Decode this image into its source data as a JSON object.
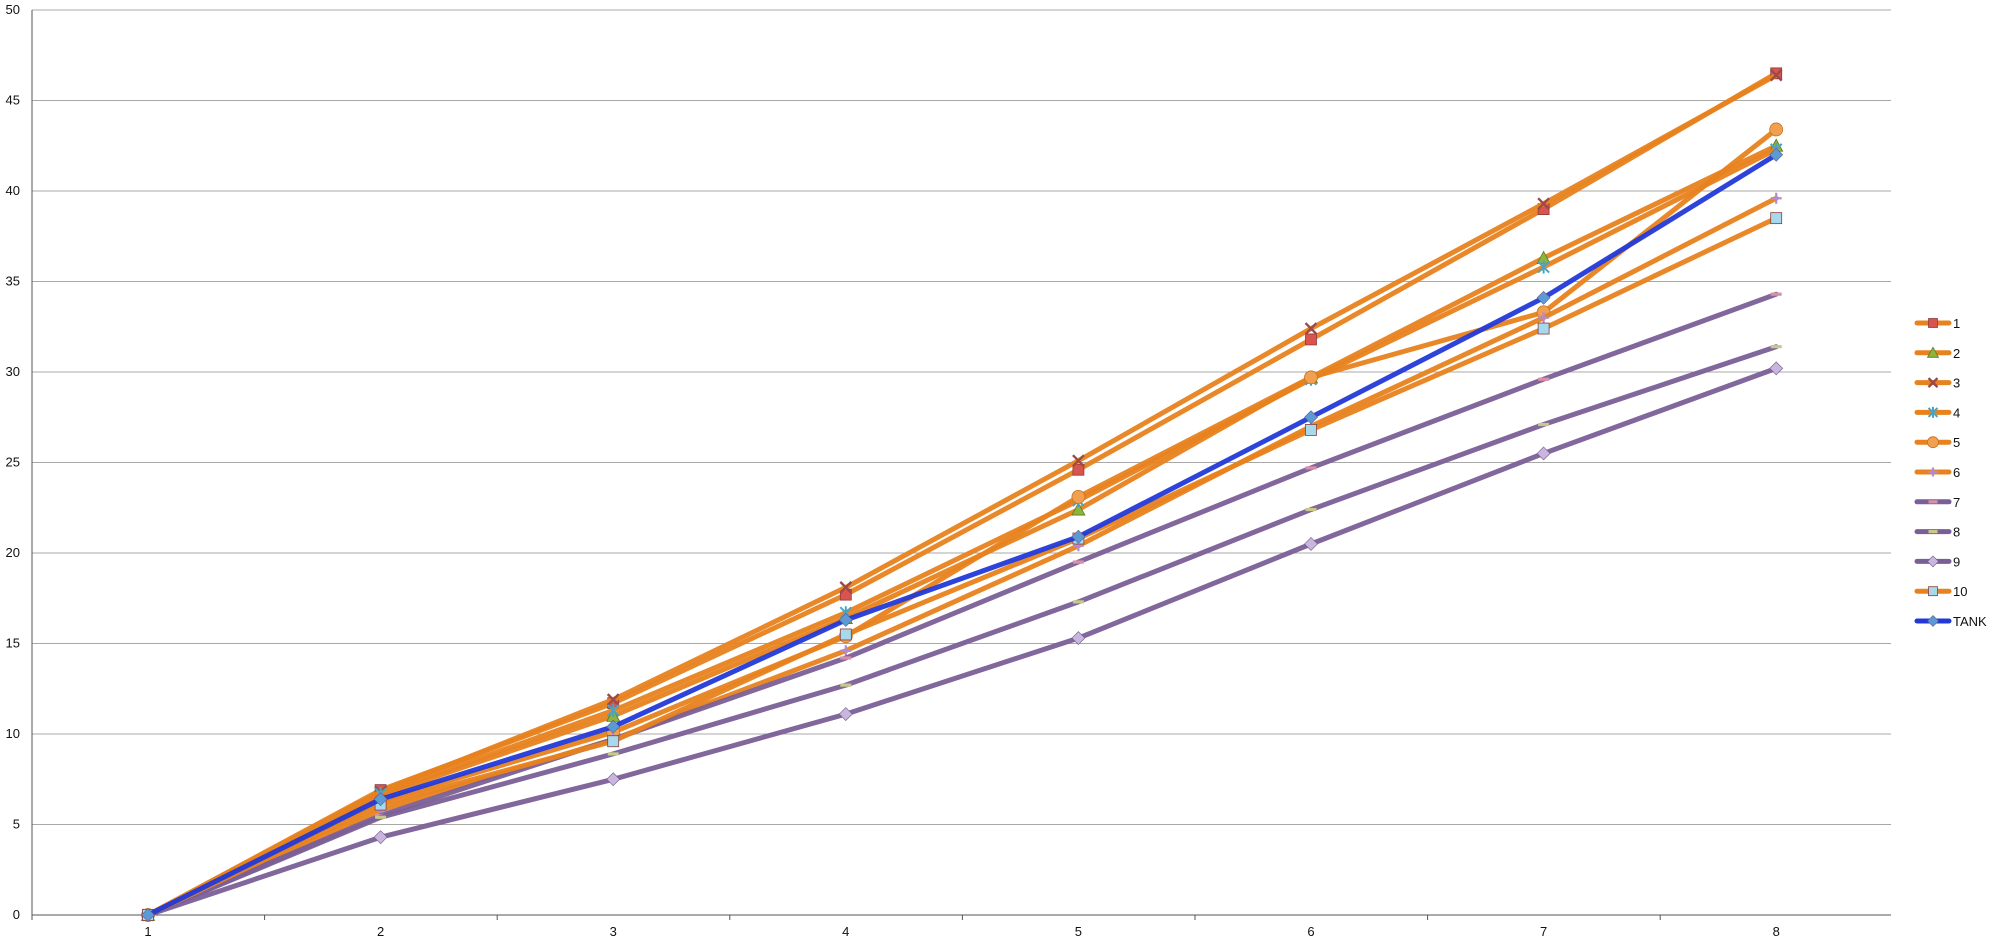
{
  "chart_data": {
    "type": "line",
    "title": "",
    "xlabel": "",
    "ylabel": "",
    "x": [
      1,
      2,
      3,
      4,
      5,
      6,
      7,
      8
    ],
    "x_tick_labels": [
      "1",
      "2",
      "3",
      "4",
      "5",
      "6",
      "7",
      "8"
    ],
    "ylim": [
      0,
      50
    ],
    "y_tick_labels": [
      "0",
      "5",
      "10",
      "15",
      "20",
      "25",
      "30",
      "35",
      "40",
      "45",
      "50"
    ],
    "grid": true,
    "legend_position": "right",
    "series": [
      {
        "name": "1",
        "color": "#E8821E",
        "marker": "square",
        "marker_color": "#D9534F",
        "values": [
          0,
          6.9,
          11.7,
          17.7,
          24.6,
          31.8,
          39.0,
          46.5
        ]
      },
      {
        "name": "2",
        "color": "#E8821E",
        "marker": "triangle",
        "marker_color": "#8DB43C",
        "values": [
          0,
          6.6,
          11.0,
          16.4,
          22.4,
          29.7,
          36.3,
          42.5
        ]
      },
      {
        "name": "3",
        "color": "#E8821E",
        "marker": "x",
        "marker_color": "#9B4A4A",
        "values": [
          0,
          6.8,
          11.9,
          18.1,
          25.1,
          32.4,
          39.3,
          46.4
        ]
      },
      {
        "name": "4",
        "color": "#E8821E",
        "marker": "star",
        "marker_color": "#4BA3C3",
        "values": [
          0,
          6.7,
          11.3,
          16.7,
          22.9,
          29.6,
          35.8,
          42.3
        ]
      },
      {
        "name": "5",
        "color": "#E8821E",
        "marker": "circle",
        "marker_color": "#F0A050",
        "values": [
          0,
          6.3,
          10.1,
          15.4,
          23.1,
          29.7,
          33.3,
          43.4
        ]
      },
      {
        "name": "6",
        "color": "#E8821E",
        "marker": "plus",
        "marker_color": "#B08CD0",
        "values": [
          0,
          5.8,
          9.7,
          14.6,
          20.4,
          27.0,
          33.0,
          39.6
        ]
      },
      {
        "name": "7",
        "color": "#7A5F96",
        "marker": "dash",
        "marker_color": "#D98FA8",
        "values": [
          0,
          5.5,
          9.7,
          14.2,
          19.5,
          24.7,
          29.6,
          34.3
        ]
      },
      {
        "name": "8",
        "color": "#7A5F96",
        "marker": "dash",
        "marker_color": "#C8C88A",
        "values": [
          0,
          5.4,
          8.9,
          12.7,
          17.3,
          22.4,
          27.1,
          31.4
        ]
      },
      {
        "name": "9",
        "color": "#7A5F96",
        "marker": "diamond",
        "marker_color": "#C9B5DD",
        "values": [
          0,
          4.3,
          7.5,
          11.1,
          15.3,
          20.5,
          25.5,
          30.2
        ]
      },
      {
        "name": "10",
        "color": "#E8821E",
        "marker": "square",
        "marker_color": "#A6D9EC",
        "values": [
          0,
          6.1,
          9.6,
          15.5,
          20.8,
          26.8,
          32.4,
          38.5
        ]
      },
      {
        "name": "TANK",
        "color": "#2239D8",
        "marker": "diamond",
        "marker_color": "#5B9BD5",
        "values": [
          0,
          6.4,
          10.4,
          16.3,
          20.9,
          27.5,
          34.1,
          42.0
        ]
      }
    ]
  }
}
